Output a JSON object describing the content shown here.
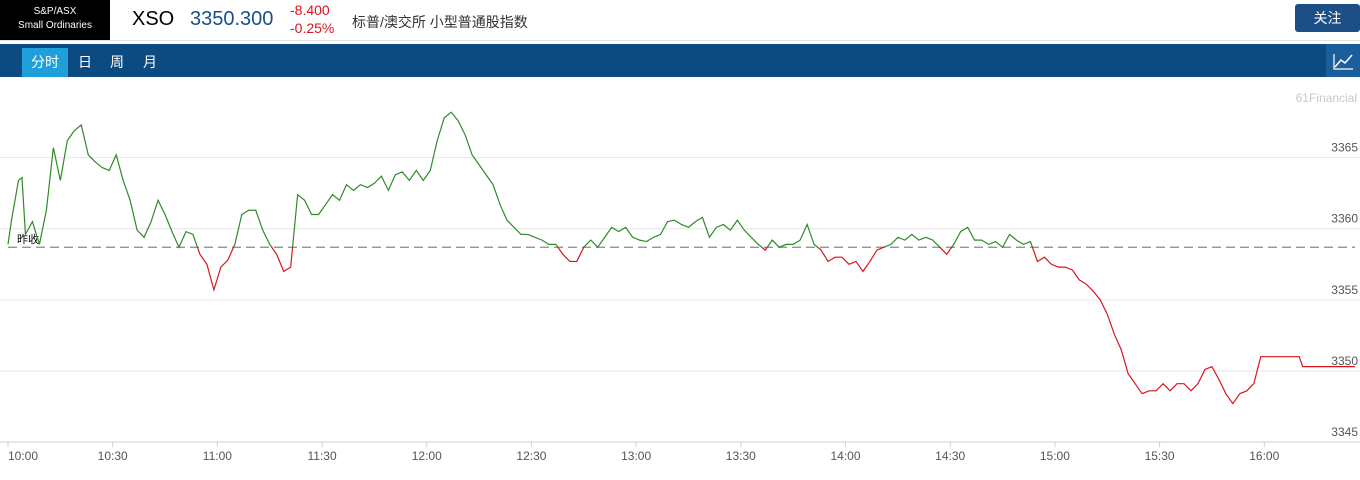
{
  "header": {
    "badge": [
      "S&P/ASX",
      "Small Ordinaries"
    ],
    "symbol": "XSO",
    "price": "3350.300",
    "change": "-8.400",
    "change_pct": "-0.25%",
    "name": "标普/澳交所 小型普通股指数",
    "follow_button": "关注"
  },
  "tabs": [
    "分时",
    "日",
    "周",
    "月"
  ],
  "chart_data": {
    "type": "line",
    "watermark": "61Financial",
    "x": [
      "10:00",
      "10:01",
      "10:03",
      "10:04",
      "10:05",
      "10:07",
      "10:09",
      "10:11",
      "10:13",
      "10:15",
      "10:17",
      "10:19",
      "10:21",
      "10:23",
      "10:25",
      "10:27",
      "10:29",
      "10:31",
      "10:33",
      "10:35",
      "10:37",
      "10:39",
      "10:41",
      "10:43",
      "10:45",
      "10:47",
      "10:49",
      "10:51",
      "10:53",
      "10:55",
      "10:57",
      "10:59",
      "11:01",
      "11:03",
      "11:05",
      "11:07",
      "11:09",
      "11:11",
      "11:13",
      "11:15",
      "11:17",
      "11:19",
      "11:21",
      "11:23",
      "11:25",
      "11:27",
      "11:29",
      "11:31",
      "11:33",
      "11:35",
      "11:37",
      "11:39",
      "11:41",
      "11:43",
      "11:45",
      "11:47",
      "11:49",
      "11:51",
      "11:53",
      "11:55",
      "11:57",
      "11:59",
      "12:01",
      "12:03",
      "12:05",
      "12:07",
      "12:09",
      "12:11",
      "12:13",
      "12:15",
      "12:17",
      "12:19",
      "12:21",
      "12:23",
      "12:25",
      "12:27",
      "12:29",
      "12:31",
      "12:33",
      "12:35",
      "12:37",
      "12:39",
      "12:41",
      "12:43",
      "12:45",
      "12:47",
      "12:49",
      "12:51",
      "12:53",
      "12:55",
      "12:57",
      "12:59",
      "13:01",
      "13:03",
      "13:05",
      "13:07",
      "13:09",
      "13:11",
      "13:13",
      "13:15",
      "13:17",
      "13:19",
      "13:21",
      "13:23",
      "13:25",
      "13:27",
      "13:29",
      "13:31",
      "13:33",
      "13:35",
      "13:37",
      "13:39",
      "13:41",
      "13:43",
      "13:45",
      "13:47",
      "13:49",
      "13:51",
      "13:53",
      "13:55",
      "13:57",
      "13:59",
      "14:01",
      "14:03",
      "14:05",
      "14:07",
      "14:09",
      "14:11",
      "14:13",
      "14:15",
      "14:17",
      "14:19",
      "14:21",
      "14:23",
      "14:25",
      "14:27",
      "14:29",
      "14:31",
      "14:33",
      "14:35",
      "14:37",
      "14:39",
      "14:41",
      "14:43",
      "14:45",
      "14:47",
      "14:49",
      "14:51",
      "14:53",
      "14:55",
      "14:57",
      "14:59",
      "15:01",
      "15:03",
      "15:05",
      "15:07",
      "15:09",
      "15:11",
      "15:13",
      "15:15",
      "15:17",
      "15:19",
      "15:21",
      "15:23",
      "15:25",
      "15:27",
      "15:29",
      "15:31",
      "15:33",
      "15:35",
      "15:37",
      "15:39",
      "15:41",
      "15:43",
      "15:45",
      "15:47",
      "15:49",
      "15:51",
      "15:53",
      "15:55",
      "15:57",
      "15:59",
      "16:10",
      "16:11",
      "16:26"
    ],
    "values": [
      3358.9,
      3360.6,
      3363.4,
      3363.6,
      3359.6,
      3360.5,
      3358.9,
      3361.3,
      3365.7,
      3363.4,
      3366.2,
      3366.9,
      3367.3,
      3365.2,
      3364.7,
      3364.3,
      3364.1,
      3365.2,
      3363.4,
      3362.0,
      3359.9,
      3359.4,
      3360.5,
      3362.0,
      3361.0,
      3359.8,
      3358.7,
      3359.8,
      3359.6,
      3358.2,
      3357.5,
      3355.7,
      3357.3,
      3357.8,
      3358.9,
      3361.0,
      3361.3,
      3361.3,
      3359.9,
      3358.9,
      3358.2,
      3357.0,
      3357.3,
      3362.4,
      3362.0,
      3361.0,
      3361.0,
      3361.7,
      3362.4,
      3362.0,
      3363.1,
      3362.7,
      3363.1,
      3362.9,
      3363.2,
      3363.7,
      3362.7,
      3363.8,
      3364.0,
      3363.4,
      3364.1,
      3363.4,
      3364.1,
      3366.2,
      3367.8,
      3368.2,
      3367.6,
      3366.6,
      3365.2,
      3364.5,
      3363.8,
      3363.1,
      3361.7,
      3360.6,
      3360.1,
      3359.6,
      3359.6,
      3359.4,
      3359.2,
      3358.9,
      3358.9,
      3358.2,
      3357.7,
      3357.7,
      3358.7,
      3359.2,
      3358.7,
      3359.4,
      3360.1,
      3359.8,
      3360.1,
      3359.4,
      3359.2,
      3359.1,
      3359.4,
      3359.6,
      3360.5,
      3360.6,
      3360.3,
      3360.1,
      3360.5,
      3360.8,
      3359.4,
      3360.1,
      3360.3,
      3359.9,
      3360.6,
      3359.9,
      3359.4,
      3358.9,
      3358.5,
      3359.2,
      3358.7,
      3358.9,
      3358.9,
      3359.2,
      3360.3,
      3358.9,
      3358.5,
      3357.7,
      3358.0,
      3358.0,
      3357.5,
      3357.7,
      3357.0,
      3357.7,
      3358.5,
      3358.7,
      3358.9,
      3359.4,
      3359.2,
      3359.6,
      3359.2,
      3359.4,
      3359.2,
      3358.7,
      3358.2,
      3358.9,
      3359.8,
      3360.1,
      3359.2,
      3359.2,
      3358.9,
      3359.1,
      3358.7,
      3359.6,
      3359.2,
      3358.9,
      3359.1,
      3357.7,
      3358.0,
      3357.5,
      3357.3,
      3357.3,
      3357.1,
      3356.4,
      3356.1,
      3355.6,
      3355.0,
      3354.0,
      3352.6,
      3351.5,
      3349.8,
      3349.1,
      3348.4,
      3348.6,
      3348.6,
      3349.1,
      3348.6,
      3349.1,
      3349.1,
      3348.6,
      3349.1,
      3350.1,
      3350.3,
      3349.4,
      3348.4,
      3347.7,
      3348.4,
      3348.6,
      3349.1,
      3351.0,
      3351.0,
      3350.3,
      3350.3
    ],
    "up_color": "#2f8a2a",
    "down_color": "#d9141e",
    "reference": {
      "label": "昨收",
      "value": 3358.7
    },
    "xlim": [
      "10:00",
      "16:26"
    ],
    "xticks": [
      "10:00",
      "10:30",
      "11:00",
      "11:30",
      "12:00",
      "12:30",
      "13:00",
      "13:30",
      "14:00",
      "14:30",
      "15:00",
      "15:30",
      "16:00"
    ],
    "ylim": [
      3345,
      3369.9
    ],
    "yticks": [
      3345,
      3350,
      3355,
      3360,
      3365
    ],
    "grid": true
  }
}
